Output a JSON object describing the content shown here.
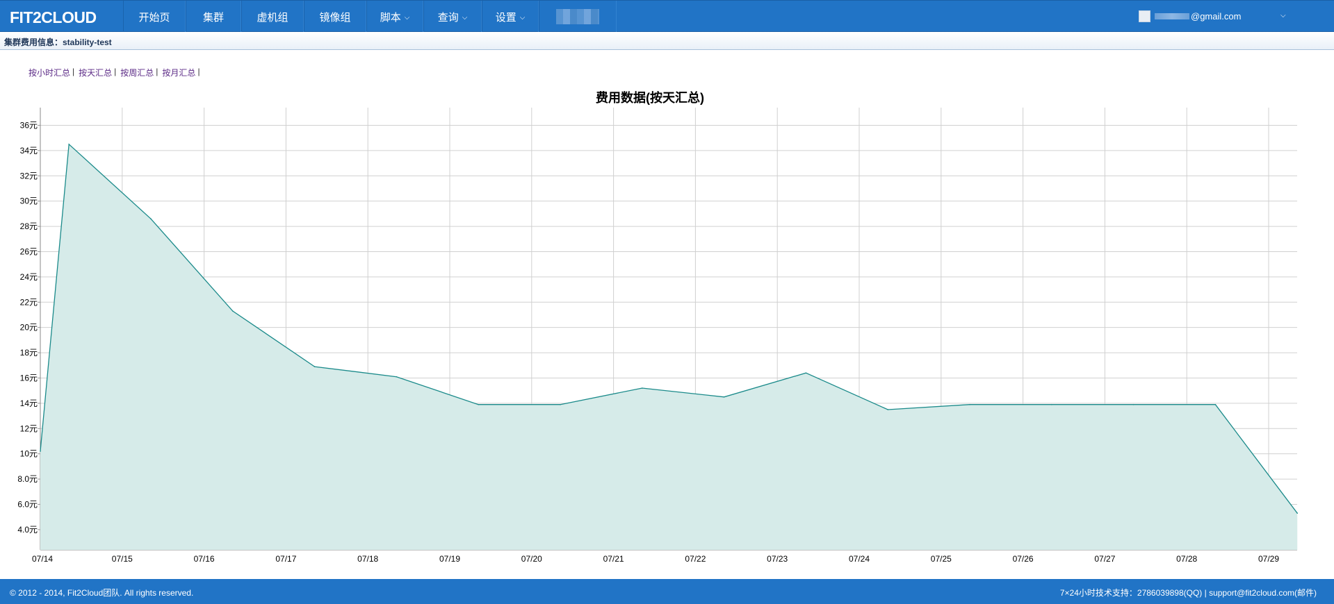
{
  "app": {
    "logo": "FIT2CLOUD"
  },
  "nav": {
    "items": [
      {
        "label": "开始页",
        "has_dropdown": false
      },
      {
        "label": "集群",
        "has_dropdown": false
      },
      {
        "label": "虚机组",
        "has_dropdown": false
      },
      {
        "label": "镜像组",
        "has_dropdown": false
      },
      {
        "label": "脚本",
        "has_dropdown": true
      },
      {
        "label": "查询",
        "has_dropdown": true
      },
      {
        "label": "设置",
        "has_dropdown": true
      }
    ],
    "chevron": "⌵"
  },
  "user": {
    "email_suffix": "@gmail.com",
    "icon": "avatar-icon"
  },
  "subheader": {
    "title": "集群费用信息：stability-test"
  },
  "summary_links": [
    {
      "label": "按小时汇总"
    },
    {
      "label": "按天汇总"
    },
    {
      "label": "按周汇总"
    },
    {
      "label": "按月汇总"
    }
  ],
  "link_separator": "|",
  "chart_data": {
    "type": "area",
    "title": "费用数据(按天汇总)",
    "xlabel": "",
    "ylabel": "",
    "unit": "元",
    "x_ticks": [
      "07/14",
      "07/15",
      "07/16",
      "07/17",
      "07/18",
      "07/19",
      "07/20",
      "07/21",
      "07/22",
      "07/23",
      "07/24",
      "07/25",
      "07/26",
      "07/27",
      "07/28",
      "07/29"
    ],
    "y_ticks": [
      "4.0元",
      "6.0元",
      "8.0元",
      "10元",
      "12元",
      "14元",
      "16元",
      "18元",
      "20元",
      "22元",
      "24元",
      "26元",
      "28元",
      "30元",
      "32元",
      "34元",
      "36元"
    ],
    "ylim": [
      2.4,
      37.4
    ],
    "xlim": [
      0,
      15.35
    ],
    "series": [
      {
        "name": "费用",
        "color": "#1a8a8a",
        "fill": "#d6ebe9",
        "x": [
          0.0,
          0.35,
          1.35,
          2.35,
          3.35,
          4.35,
          5.35,
          6.35,
          7.35,
          8.35,
          9.35,
          10.35,
          11.35,
          12.35,
          13.35,
          14.35,
          15.35
        ],
        "values": [
          10.2,
          34.5,
          28.6,
          21.3,
          16.9,
          16.1,
          13.9,
          13.9,
          15.2,
          14.5,
          16.4,
          13.5,
          13.9,
          13.9,
          13.9,
          13.9,
          5.3
        ]
      }
    ],
    "grid": true
  },
  "footer": {
    "left": "© 2012 - 2014, Fit2Cloud团队. All rights reserved.",
    "right": "7×24小时技术支持：2786039898(QQ) | support@fit2cloud.com(邮件)"
  }
}
